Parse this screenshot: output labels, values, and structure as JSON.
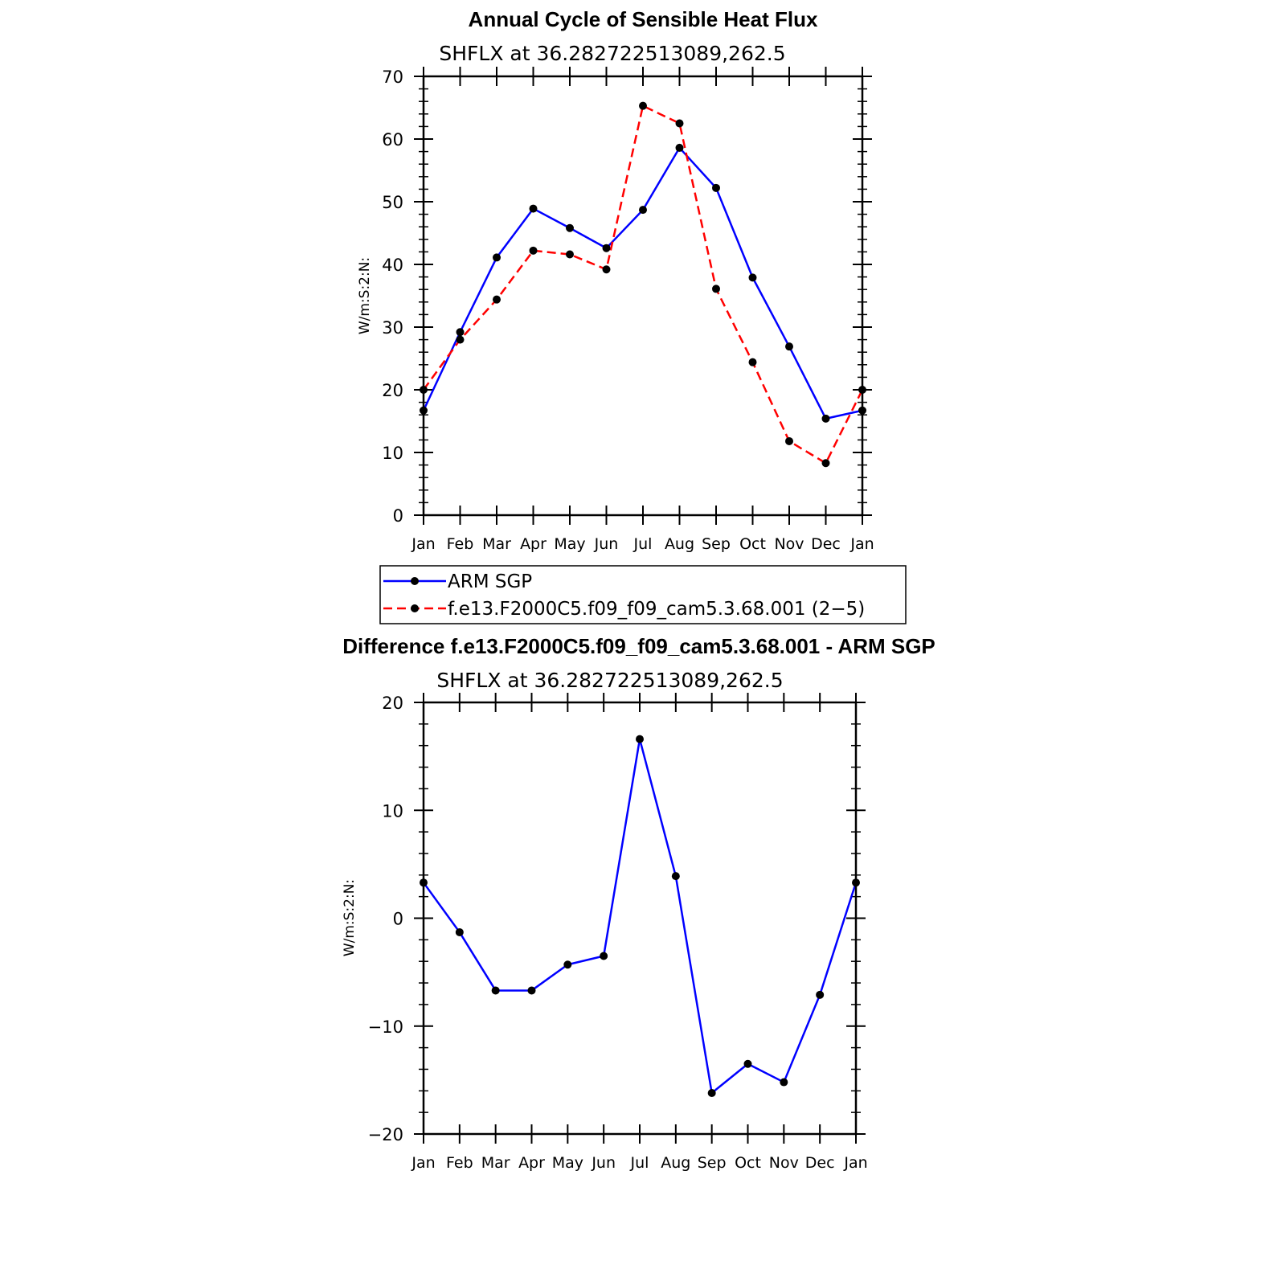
{
  "chart_data": [
    {
      "type": "line",
      "title": "Annual Cycle of Sensible Heat Flux",
      "subtitle": "SHFLX  at  36.282722513089,262.5",
      "xlabel": "",
      "ylabel": "W/m:S:2:N:",
      "categories": [
        "Jan",
        "Feb",
        "Mar",
        "Apr",
        "May",
        "Jun",
        "Jul",
        "Aug",
        "Sep",
        "Oct",
        "Nov",
        "Dec",
        "Jan"
      ],
      "ylim": [
        0,
        70
      ],
      "yticks": [
        "0",
        "10",
        "20",
        "30",
        "40",
        "50",
        "60",
        "70"
      ],
      "series": [
        {
          "name": "ARM SGP",
          "color": "#0000ff",
          "dash": "solid",
          "values": [
            16.7,
            29.2,
            41.1,
            48.9,
            45.8,
            42.6,
            48.7,
            58.6,
            52.2,
            37.9,
            26.9,
            15.4,
            16.7
          ]
        },
        {
          "name": "f.e13.F2000C5.f09_f09_cam5.3.68.001 (2−5)",
          "color": "#ff0000",
          "dash": "dashed",
          "values": [
            20.0,
            28.0,
            34.4,
            42.2,
            41.6,
            39.2,
            65.3,
            62.5,
            36.1,
            24.4,
            11.8,
            8.3,
            20.0
          ]
        }
      ],
      "legend": [
        "ARM SGP",
        "f.e13.F2000C5.f09_f09_cam5.3.68.001 (2−5)"
      ]
    },
    {
      "type": "line",
      "title": "Difference f.e13.F2000C5.f09_f09_cam5.3.68.001 - ARM SGP",
      "subtitle": "SHFLX  at  36.282722513089,262.5",
      "xlabel": "",
      "ylabel": "W/m:S:2:N:",
      "categories": [
        "Jan",
        "Feb",
        "Mar",
        "Apr",
        "May",
        "Jun",
        "Jul",
        "Aug",
        "Sep",
        "Oct",
        "Nov",
        "Dec",
        "Jan"
      ],
      "ylim": [
        -20,
        20
      ],
      "yticks": [
        "−20",
        "−10",
        "0",
        "10",
        "20"
      ],
      "series": [
        {
          "name": "Difference",
          "color": "#0000ff",
          "dash": "solid",
          "values": [
            3.3,
            -1.3,
            -6.7,
            -6.7,
            -4.3,
            -3.5,
            16.6,
            3.9,
            -16.2,
            -13.5,
            -15.2,
            -7.1,
            3.3
          ]
        }
      ]
    }
  ]
}
